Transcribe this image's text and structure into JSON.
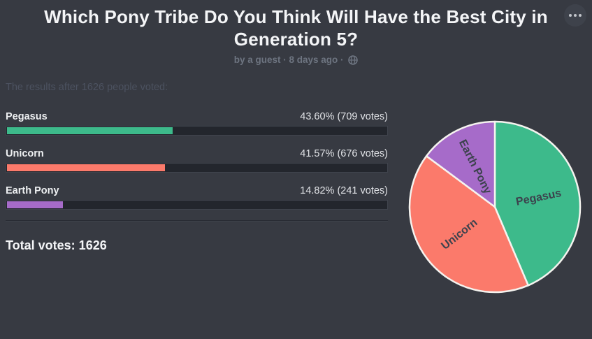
{
  "page": {
    "background": "#373a42"
  },
  "header": {
    "title": "Which Pony Tribe Do You Think Will Have the Best City in Generation 5?",
    "byline_text": "by a guest · 8 days ago ·",
    "globe_icon": "globe-icon",
    "menu_icon": "ellipsis-icon"
  },
  "results": {
    "intro": "The results after 1626 people voted:",
    "total_label": "Total votes: 1626",
    "options": [
      {
        "label": "Pegasus",
        "result": "43.60% (709 votes)"
      },
      {
        "label": "Unicorn",
        "result": "41.57% (676 votes)"
      },
      {
        "label": "Earth Pony",
        "result": "14.82% (241 votes)"
      }
    ]
  },
  "chart_data": {
    "type": "pie",
    "categories": [
      "Pegasus",
      "Unicorn",
      "Earth Pony"
    ],
    "values": [
      43.6,
      41.57,
      14.82
    ],
    "votes": [
      709,
      676,
      241
    ],
    "total_votes": 1626,
    "colors": [
      "#3dba8b",
      "#fb7a6b",
      "#a66bc9"
    ],
    "label_color": "#3c424d",
    "slice_stroke": "#f5f3ef",
    "start_angle_deg": 0,
    "direction": "clockwise",
    "labels_inside": true,
    "legend": "none"
  }
}
